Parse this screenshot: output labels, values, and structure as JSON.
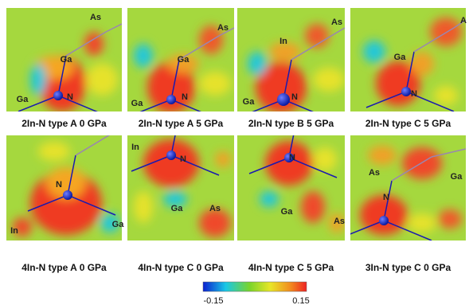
{
  "panels": [
    {
      "caption": "2In-N type A 0 GPa",
      "labels": [
        "As",
        "Ga",
        "Ga",
        "N"
      ]
    },
    {
      "caption": "2In-N type A 5 GPa",
      "labels": [
        "As",
        "Ga",
        "Ga",
        "N"
      ]
    },
    {
      "caption": "2In-N type B 5 GPa",
      "labels": [
        "As",
        "In",
        "Ga",
        "N"
      ]
    },
    {
      "caption": "2In-N type C 5 GPa",
      "labels": [
        "A",
        "Ga",
        "N"
      ]
    },
    {
      "caption": "4In-N type A 0 GPa",
      "labels": [
        "N",
        "In",
        "Ga"
      ]
    },
    {
      "caption": "4In-N type C 0 GPa",
      "labels": [
        "In",
        "N",
        "Ga",
        "As"
      ]
    },
    {
      "caption": "4In-N type C 5 GPa",
      "labels": [
        "N",
        "Ga",
        "As"
      ]
    },
    {
      "caption": "3In-N type C 0 GPa",
      "labels": [
        "As",
        "Ga",
        "N"
      ]
    }
  ],
  "colorbar": {
    "min_label": "-0.15",
    "max_label": "0.15"
  }
}
